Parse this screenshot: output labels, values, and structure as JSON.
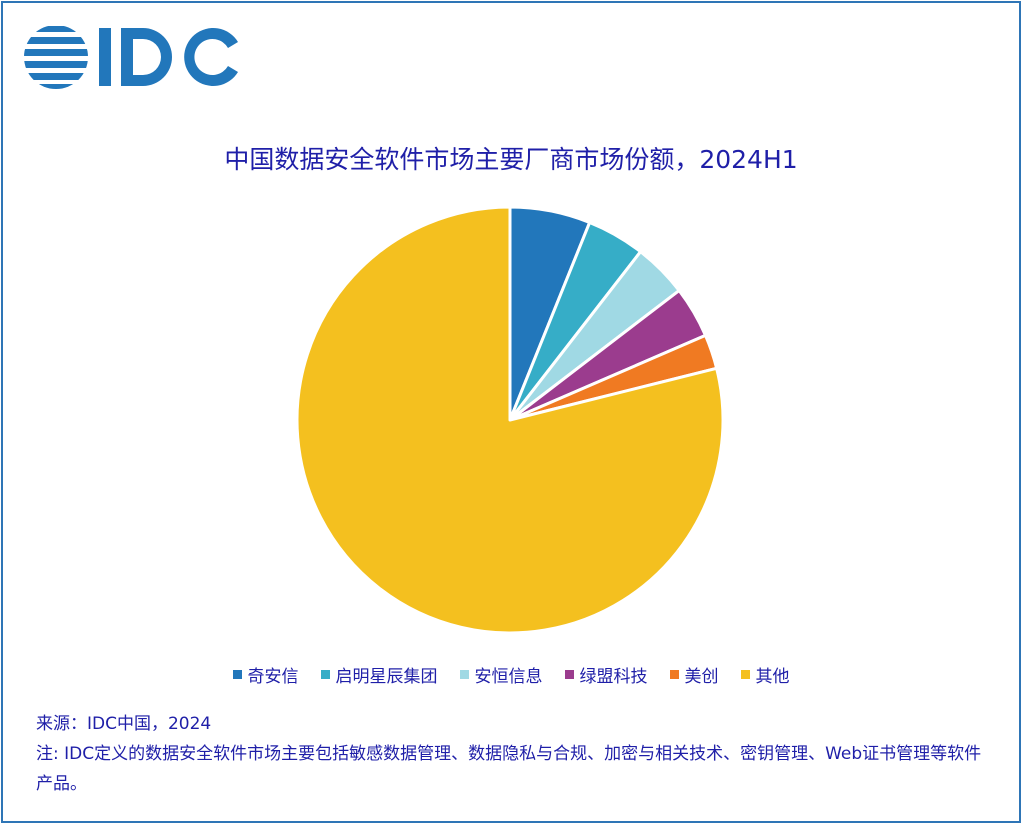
{
  "logo_text": "IDC",
  "chart_data": {
    "type": "pie",
    "title": "中国数据安全软件市场主要厂商市场份额，2024H1",
    "start_angle": "top",
    "direction": "clockwise",
    "legend_position": "bottom",
    "slices": [
      {
        "label": "奇安信",
        "value": 6.1,
        "color": "#2277bb"
      },
      {
        "label": "启明星辰集团",
        "value": 4.4,
        "color": "#36adc7"
      },
      {
        "label": "安恒信息",
        "value": 4.1,
        "color": "#a0d9e4"
      },
      {
        "label": "绿盟科技",
        "value": 3.9,
        "color": "#9b3c8e"
      },
      {
        "label": "美创",
        "value": 2.6,
        "color": "#f07a22"
      },
      {
        "label": "其他",
        "value": 78.9,
        "color": "#f4c01f"
      }
    ]
  },
  "notes": {
    "source": "来源：IDC中国，2024",
    "note": "注: IDC定义的数据安全软件市场主要包括敏感数据管理、数据隐私与合规、加密与相关技术、密钥管理、Web证书管理等软件产品。"
  }
}
